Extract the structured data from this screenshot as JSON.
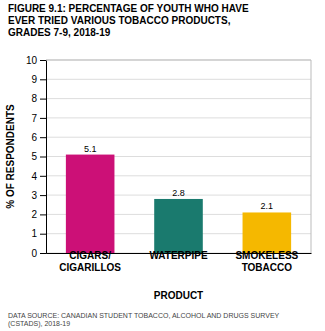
{
  "chart_data": {
    "type": "bar",
    "title": "FIGURE 9.1: PERCENTAGE OF YOUTH WHO HAVE\nEVER TRIED VARIOUS TOBACCO PRODUCTS,\nGRADES 7-9, 2018-19",
    "categories": [
      "CIGARS/\nCIGARILLOS",
      "WATERPIPE",
      "SMOKELESS\nTOBACCO"
    ],
    "values": [
      5.1,
      2.8,
      2.1
    ],
    "colors": [
      "#CC1077",
      "#1A7A6E",
      "#F5B800"
    ],
    "xlabel": "PRODUCT",
    "ylabel": "% OF RESPONDENTS",
    "ylim": [
      0,
      10
    ],
    "yticks": [
      0,
      1,
      2,
      3,
      4,
      5,
      6,
      7,
      8,
      9,
      10
    ],
    "grid": true,
    "data_labels": true,
    "footnote": "DATA SOURCE: CANADIAN STUDENT TOBACCO, ALCOHOL AND DRUGS SURVEY\n(CSTADS), 2018-19"
  }
}
